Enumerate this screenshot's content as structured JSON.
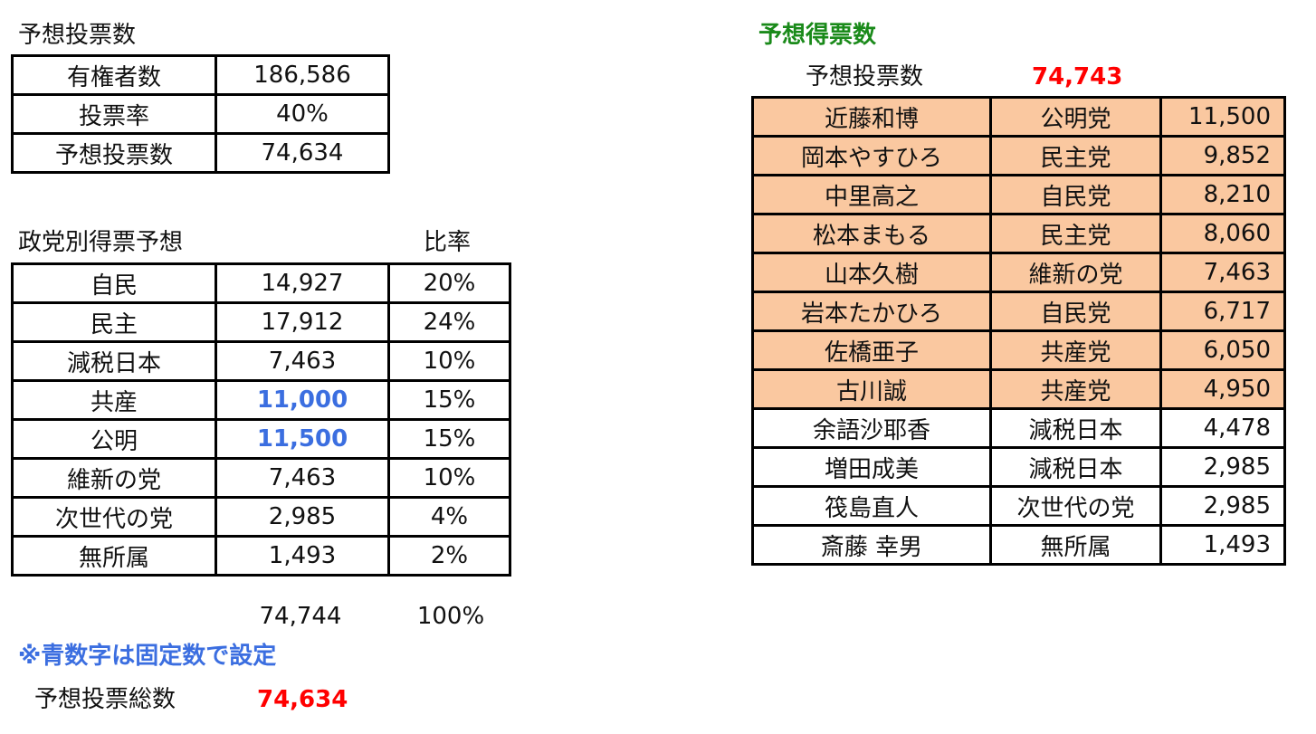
{
  "turnout": {
    "title": "予想投票数",
    "rows": [
      {
        "label": "有権者数",
        "value": "186,586"
      },
      {
        "label": "投票率",
        "value": "40%"
      },
      {
        "label": "予想投票数",
        "value": "74,634"
      }
    ]
  },
  "party_forecast": {
    "title": "政党別得票予想",
    "ratio_header": "比率",
    "rows": [
      {
        "party": "自民",
        "votes": "14,927",
        "ratio": "20%",
        "fixed": false
      },
      {
        "party": "民主",
        "votes": "17,912",
        "ratio": "24%",
        "fixed": false
      },
      {
        "party": "減税日本",
        "votes": "7,463",
        "ratio": "10%",
        "fixed": false
      },
      {
        "party": "共産",
        "votes": "11,000",
        "ratio": "15%",
        "fixed": true
      },
      {
        "party": "公明",
        "votes": "11,500",
        "ratio": "15%",
        "fixed": true
      },
      {
        "party": "維新の党",
        "votes": "7,463",
        "ratio": "10%",
        "fixed": false
      },
      {
        "party": "次世代の党",
        "votes": "2,985",
        "ratio": "4%",
        "fixed": false
      },
      {
        "party": "無所属",
        "votes": "1,493",
        "ratio": "2%",
        "fixed": false
      }
    ],
    "total_votes": "74,744",
    "total_ratio": "100%",
    "note": "※青数字は固定数で設定",
    "grand_total_label": "予想投票総数",
    "grand_total_value": "74,634"
  },
  "candidate_forecast": {
    "title": "予想得票数",
    "total_label": "予想投票数",
    "total_value": "74,743",
    "highlight_color": "#fac8a0",
    "rows": [
      {
        "name": "近藤和博",
        "party": "公明党",
        "votes": "11,500",
        "highlight": true
      },
      {
        "name": "岡本やすひろ",
        "party": "民主党",
        "votes": "9,852",
        "highlight": true
      },
      {
        "name": "中里高之",
        "party": "自民党",
        "votes": "8,210",
        "highlight": true
      },
      {
        "name": "松本まもる",
        "party": "民主党",
        "votes": "8,060",
        "highlight": true
      },
      {
        "name": "山本久樹",
        "party": "維新の党",
        "votes": "7,463",
        "highlight": true
      },
      {
        "name": "岩本たかひろ",
        "party": "自民党",
        "votes": "6,717",
        "highlight": true
      },
      {
        "name": "佐橋亜子",
        "party": "共産党",
        "votes": "6,050",
        "highlight": true
      },
      {
        "name": "古川誠",
        "party": "共産党",
        "votes": "4,950",
        "highlight": true
      },
      {
        "name": "余語沙耶香",
        "party": "減税日本",
        "votes": "4,478",
        "highlight": false
      },
      {
        "name": "増田成美",
        "party": "減税日本",
        "votes": "2,985",
        "highlight": false
      },
      {
        "name": "筏島直人",
        "party": "次世代の党",
        "votes": "2,985",
        "highlight": false
      },
      {
        "name": "斎藤 幸男",
        "party": "無所属",
        "votes": "1,493",
        "highlight": false
      }
    ]
  }
}
